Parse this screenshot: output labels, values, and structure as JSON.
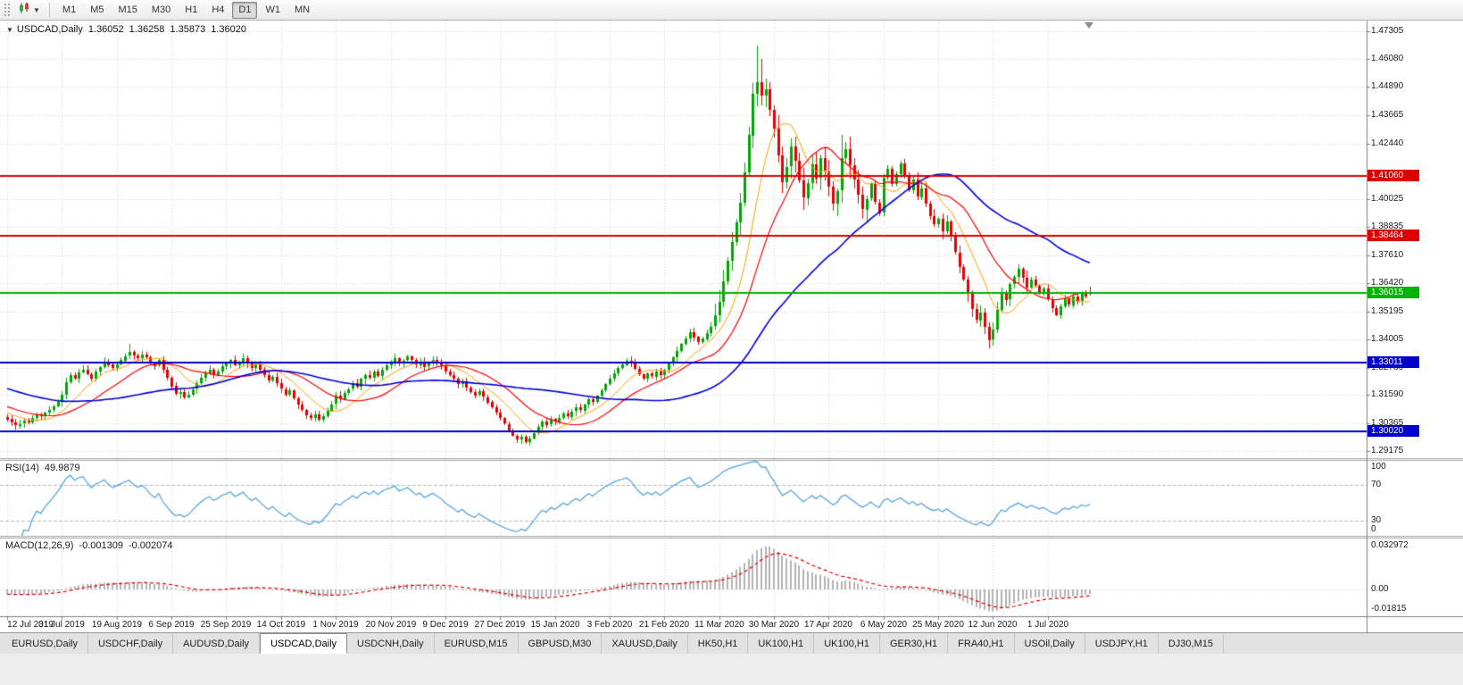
{
  "toolbar": {
    "timeframes": [
      "M1",
      "M5",
      "M15",
      "M30",
      "H1",
      "H4",
      "D1",
      "W1",
      "MN"
    ],
    "active_timeframe": "D1"
  },
  "tabs": {
    "active_index": 3,
    "items": [
      "EURUSD,Daily",
      "USDCHF,Daily",
      "AUDUSD,Daily",
      "USDCAD,Daily",
      "USDCNH,Daily",
      "EURUSD,M15",
      "GBPUSD,M30",
      "XAUUSD,Daily",
      "HK50,H1",
      "UK100,H1",
      "UK100,H1",
      "GER30,H1",
      "FRA40,H1",
      "USOil,Daily",
      "USDJPY,H1",
      "DJ30,M15"
    ],
    "note": "bottom chart tabs"
  },
  "chart_data": {
    "type": "candlestick",
    "symbol_label": "USDCAD,Daily",
    "quote": {
      "open": "1.36052",
      "high": "1.36258",
      "low": "1.35873",
      "close": "1.36020"
    },
    "price_axis_ticks": [
      "1.47305",
      "1.46080",
      "1.44890",
      "1.43665",
      "1.42440",
      "1.40025",
      "1.38835",
      "1.37610",
      "1.36420",
      "1.35195",
      "1.34005",
      "1.32780",
      "1.31590",
      "1.30365",
      "1.29175"
    ],
    "price_range": {
      "max": 1.4775,
      "min": 1.2887
    },
    "x_labels": [
      "12 Jul 2019",
      "31 Jul 2019",
      "19 Aug 2019",
      "6 Sep 2019",
      "25 Sep 2019",
      "14 Oct 2019",
      "1 Nov 2019",
      "20 Nov 2019",
      "9 Dec 2019",
      "27 Dec 2019",
      "15 Jan 2020",
      "3 Feb 2020",
      "21 Feb 2020",
      "11 Mar 2020",
      "30 Mar 2020",
      "17 Apr 2020",
      "6 May 2020",
      "25 May 2020",
      "12 Jun 2020",
      "1 Jul 2020"
    ],
    "bars_per_label": 13,
    "closes": [
      1.3055,
      1.304,
      1.3028,
      1.3035,
      1.3048,
      1.3042,
      1.306,
      1.3075,
      1.3068,
      1.3082,
      1.3095,
      1.311,
      1.313,
      1.316,
      1.3215,
      1.3245,
      1.323,
      1.3258,
      1.327,
      1.325,
      1.3232,
      1.3262,
      1.328,
      1.3305,
      1.329,
      1.3275,
      1.3292,
      1.331,
      1.3328,
      1.3345,
      1.333,
      1.3318,
      1.3335,
      1.3322,
      1.33,
      1.3285,
      1.331,
      1.3268,
      1.3235,
      1.3198,
      1.3165,
      1.3172,
      1.315,
      1.3162,
      1.3185,
      1.321,
      1.3232,
      1.3255,
      1.327,
      1.3248,
      1.3262,
      1.3285,
      1.3295,
      1.331,
      1.3288,
      1.33,
      1.3318,
      1.3295,
      1.3275,
      1.329,
      1.3268,
      1.3245,
      1.3222,
      1.3238,
      1.321,
      1.3185,
      1.316,
      1.3178,
      1.3145,
      1.3118,
      1.3095,
      1.3072,
      1.306,
      1.3075,
      1.3052,
      1.3068,
      1.309,
      1.312,
      1.3155,
      1.3142,
      1.3168,
      1.3185,
      1.321,
      1.3195,
      1.3228,
      1.3245,
      1.3232,
      1.326,
      1.3242,
      1.327,
      1.3288,
      1.3302,
      1.3318,
      1.3295,
      1.3308,
      1.3325,
      1.331,
      1.329,
      1.3305,
      1.3282,
      1.3295,
      1.3312,
      1.3298,
      1.3285,
      1.3262,
      1.3245,
      1.3228,
      1.3205,
      1.3218,
      1.319,
      1.3172,
      1.3158,
      1.3175,
      1.315,
      1.3128,
      1.3105,
      1.3082,
      1.306,
      1.3035,
      1.3008,
      1.2985,
      1.2968,
      1.2978,
      1.2955,
      1.2972,
      1.2995,
      1.3022,
      1.3045,
      1.303,
      1.3055,
      1.3042,
      1.306,
      1.3078,
      1.3065,
      1.3088,
      1.3105,
      1.3092,
      1.3118,
      1.314,
      1.3128,
      1.3155,
      1.3178,
      1.3205,
      1.3228,
      1.3252,
      1.3275,
      1.329,
      1.3308,
      1.3295,
      1.3272,
      1.3248,
      1.323,
      1.3252,
      1.324,
      1.3262,
      1.3245,
      1.3268,
      1.3295,
      1.3322,
      1.3348,
      1.338,
      1.3405,
      1.3432,
      1.341,
      1.3385,
      1.3402,
      1.3428,
      1.3455,
      1.3502,
      1.356,
      1.365,
      1.3738,
      1.382,
      1.3905,
      1.399,
      1.412,
      1.428,
      1.446,
      1.451,
      1.4452,
      1.448,
      1.439,
      1.431,
      1.4195,
      1.408,
      1.4145,
      1.423,
      1.417,
      1.4085,
      1.401,
      1.4075,
      1.4155,
      1.4095,
      1.418,
      1.4125,
      1.406,
      1.3985,
      1.404,
      1.418,
      1.422,
      1.415,
      1.4088,
      1.4022,
      1.396,
      1.4005,
      1.4068,
      1.399,
      1.3945,
      1.4095,
      1.4135,
      1.4068,
      1.4112,
      1.416,
      1.4105,
      1.4042,
      1.4088,
      1.4015,
      1.4052,
      1.3985,
      1.393,
      1.3895,
      1.392,
      1.3865,
      1.3908,
      1.3842,
      1.3775,
      1.3712,
      1.3658,
      1.3595,
      1.353,
      1.3482,
      1.3515,
      1.3455,
      1.3398,
      1.3442,
      1.3528,
      1.3605,
      1.3572,
      1.3638,
      1.367,
      1.3705,
      1.3665,
      1.3622,
      1.3658,
      1.363,
      1.3598,
      1.3618,
      1.3572,
      1.3535,
      1.3505,
      1.3542,
      1.3575,
      1.3548,
      1.3585,
      1.3562,
      1.3598,
      1.3582,
      1.3602
    ],
    "candle_overrides": {
      "29": {
        "h": 1.3382
      },
      "121": {
        "l": 1.2952
      },
      "123": {
        "l": 1.2948
      },
      "178": {
        "h": 1.4668
      },
      "179": {
        "h": 1.4608
      },
      "198": {
        "h": 1.428
      },
      "233": {
        "l": 1.336
      },
      "257": {
        "o": 1.36052,
        "h": 1.36258,
        "l": 1.35873,
        "c": 1.3602
      }
    },
    "prehistory": {
      "bars": 50,
      "from": 1.332,
      "to": 1.3065
    },
    "hlines": [
      {
        "price": 1.4106,
        "label": "1.41060",
        "color": "#dd0000"
      },
      {
        "price": 1.38464,
        "label": "1.38464",
        "color": "#dd0000"
      },
      {
        "price": 1.36015,
        "label": "1.36015",
        "color": "#00b400"
      },
      {
        "price": 1.33011,
        "label": "1.33011",
        "color": "#0000cc"
      },
      {
        "price": 1.3002,
        "label": "1.30020",
        "color": "#0000cc"
      }
    ],
    "moving_averages": [
      {
        "period": 10,
        "type": "sma",
        "color": "#ff9d00",
        "width": 1
      },
      {
        "period": 20,
        "type": "sma",
        "color": "#ff0000",
        "width": 1.2
      },
      {
        "period": 50,
        "type": "sma",
        "color": "#0000e0",
        "width": 1.6
      }
    ],
    "colors": {
      "up": "#00a600",
      "down": "#e30000",
      "grid": "#d6d6d6",
      "bg": "#ffffff",
      "frame": "#808080"
    },
    "rsi": {
      "title": "RSI(14)",
      "value": "49.9879",
      "period": 14,
      "color": "#4aa0dc",
      "levels": [
        70,
        30
      ],
      "scale_labels": [
        "100",
        "70",
        "30",
        "0"
      ]
    },
    "macd": {
      "title": "MACD(12,26,9)",
      "value_main": "-0.001309",
      "value_signal": "-0.002074",
      "fast": 12,
      "slow": 26,
      "signal": 9,
      "hist_color": "#b3b3b3",
      "signal_color": "#e30000",
      "scale_top": "0.032972",
      "scale_zero": "0.00",
      "scale_bottom": "-0.01815"
    }
  }
}
